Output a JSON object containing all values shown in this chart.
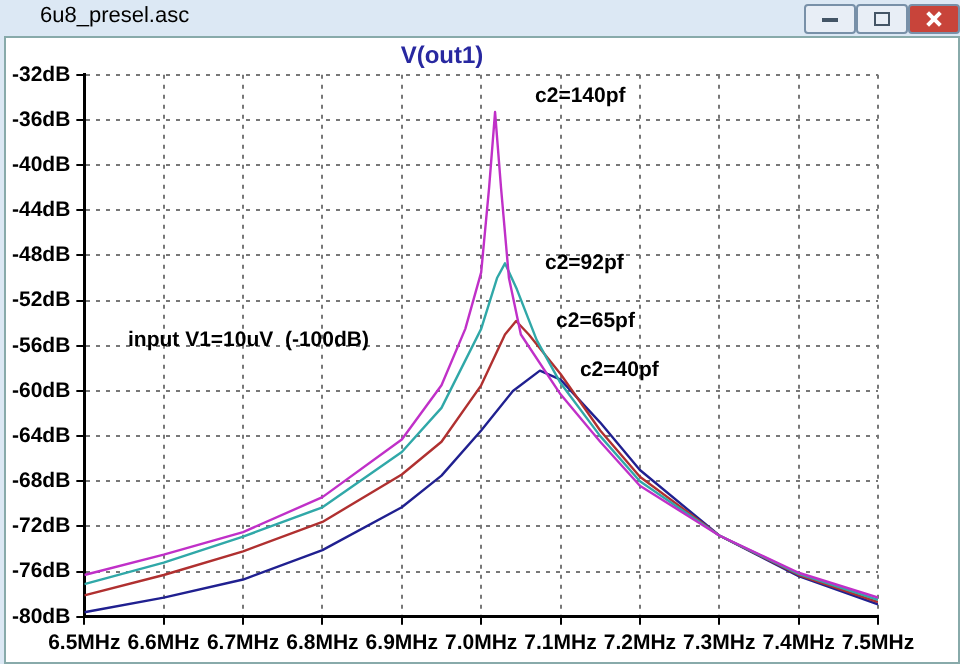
{
  "chart_data": {
    "type": "line",
    "title": "V(out1)",
    "annotations": [
      "6u8_presel.asc",
      "input V1=10uV  (-100dB)"
    ],
    "xlim": [
      6.5,
      7.5
    ],
    "xticks": [
      {
        "value": 6.5,
        "label": "6.5MHz"
      },
      {
        "value": 6.6,
        "label": "6.6MHz"
      },
      {
        "value": 6.7,
        "label": "6.7MHz"
      },
      {
        "value": 6.8,
        "label": "6.8MHz"
      },
      {
        "value": 6.9,
        "label": "6.9MHz"
      },
      {
        "value": 7.0,
        "label": "7.0MHz"
      },
      {
        "value": 7.1,
        "label": "7.1MHz"
      },
      {
        "value": 7.2,
        "label": "7.2MHz"
      },
      {
        "value": 7.3,
        "label": "7.3MHz"
      },
      {
        "value": 7.4,
        "label": "7.4MHz"
      },
      {
        "value": 7.5,
        "label": "7.5MHz"
      }
    ],
    "ylim": [
      -80,
      -32
    ],
    "yticks": [
      {
        "value": -32,
        "label": "-32dB"
      },
      {
        "value": -36,
        "label": "-36dB"
      },
      {
        "value": -40,
        "label": "-40dB"
      },
      {
        "value": -44,
        "label": "-44dB"
      },
      {
        "value": -48,
        "label": "-48dB"
      },
      {
        "value": -52,
        "label": "-52dB"
      },
      {
        "value": -56,
        "label": "-56dB"
      },
      {
        "value": -60,
        "label": "-60dB"
      },
      {
        "value": -64,
        "label": "-64dB"
      },
      {
        "value": -68,
        "label": "-68dB"
      },
      {
        "value": -72,
        "label": "-72dB"
      },
      {
        "value": -76,
        "label": "-76dB"
      },
      {
        "value": -80,
        "label": "-80dB"
      }
    ],
    "grid": true,
    "legend": false,
    "marker": "none",
    "line_style": "solid",
    "series": [
      {
        "name": "c2=140pf",
        "color": "#c030c8",
        "x": [
          6.5,
          6.6,
          6.7,
          6.8,
          6.9,
          6.95,
          6.98,
          7.0,
          7.01,
          7.0175,
          7.025,
          7.035,
          7.05,
          7.1,
          7.15,
          7.2,
          7.3,
          7.4,
          7.5
        ],
        "values": [
          -76.3,
          -74.5,
          -72.5,
          -69.4,
          -64.3,
          -59.5,
          -54.5,
          -49.5,
          -42,
          -35.3,
          -42,
          -50,
          -55,
          -60.3,
          -64.5,
          -68.4,
          -72.8,
          -76.1,
          -78.3
        ]
      },
      {
        "name": "c2=92pf",
        "color": "#30a8a8",
        "x": [
          6.5,
          6.6,
          6.7,
          6.8,
          6.9,
          6.95,
          7.0,
          7.02,
          7.03,
          7.045,
          7.07,
          7.1,
          7.15,
          7.2,
          7.3,
          7.4,
          7.5
        ],
        "values": [
          -77.1,
          -75.2,
          -72.9,
          -70.3,
          -65.4,
          -61.5,
          -54.5,
          -50,
          -48.7,
          -51,
          -55.5,
          -59.3,
          -64,
          -68,
          -72.8,
          -76.2,
          -78.5
        ]
      },
      {
        "name": "c2=65pf",
        "color": "#b03030",
        "x": [
          6.5,
          6.6,
          6.7,
          6.8,
          6.9,
          6.95,
          7.0,
          7.03,
          7.044,
          7.06,
          7.1,
          7.15,
          7.2,
          7.3,
          7.4,
          7.5
        ],
        "values": [
          -78.1,
          -76.3,
          -74.2,
          -71.6,
          -67.4,
          -64.5,
          -59.5,
          -55,
          -53.8,
          -55,
          -58.5,
          -63.5,
          -67.6,
          -72.8,
          -76.3,
          -78.7
        ]
      },
      {
        "name": "c2=40pf",
        "color": "#202090",
        "x": [
          6.5,
          6.6,
          6.7,
          6.8,
          6.9,
          6.95,
          7.0,
          7.04,
          7.074,
          7.1,
          7.15,
          7.2,
          7.3,
          7.4,
          7.5
        ],
        "values": [
          -79.6,
          -78.3,
          -76.7,
          -74.1,
          -70.3,
          -67.5,
          -63.5,
          -60,
          -58.2,
          -59,
          -62.8,
          -67,
          -72.8,
          -76.4,
          -78.9
        ]
      }
    ]
  }
}
